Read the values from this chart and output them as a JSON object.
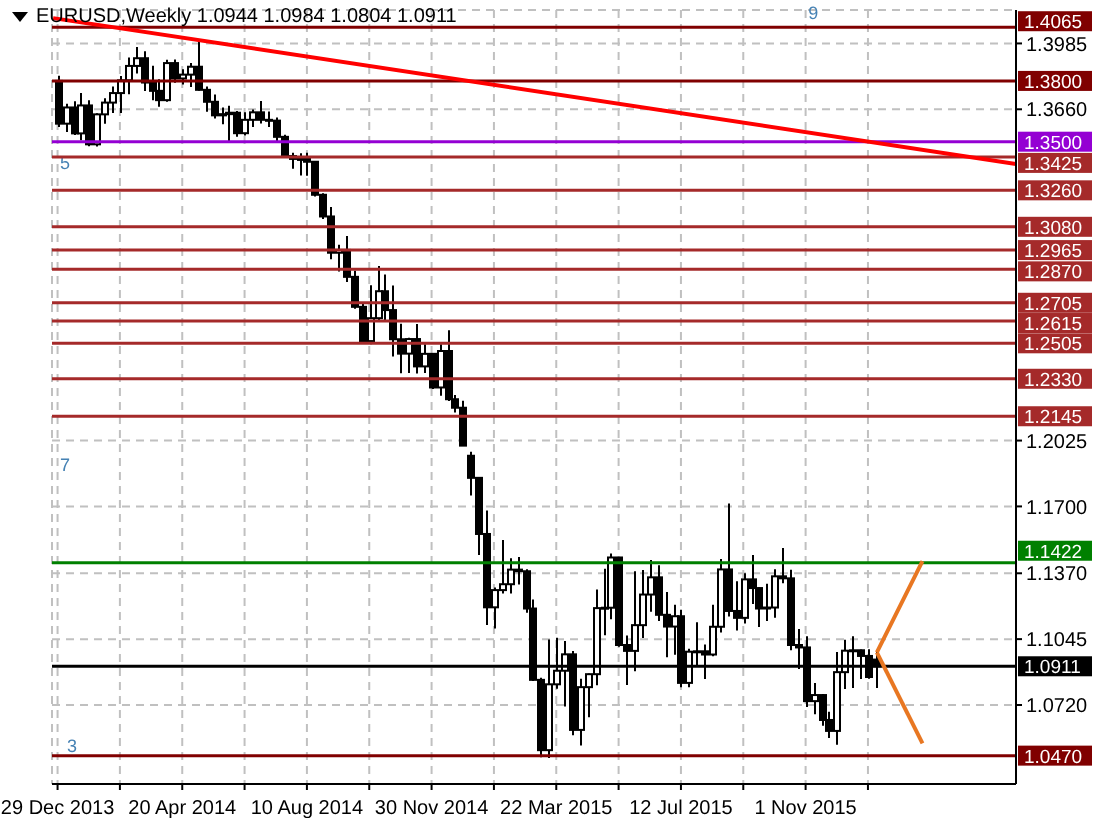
{
  "chart_data": {
    "type": "candlestick",
    "title": "EURUSD,Weekly  1.0944 1.0984 1.0804 1.0911",
    "color": "#000000",
    "x": [
      "2013-12-29",
      "2014-01-05",
      "2014-01-12",
      "2014-01-19",
      "2014-01-26",
      "2014-02-02",
      "2014-02-09",
      "2014-02-16",
      "2014-02-23",
      "2014-03-02",
      "2014-03-09",
      "2014-03-16",
      "2014-03-23",
      "2014-03-30",
      "2014-04-06",
      "2014-04-13",
      "2014-04-20",
      "2014-04-27",
      "2014-05-04",
      "2014-05-11",
      "2014-05-18",
      "2014-05-25",
      "2014-06-01",
      "2014-06-08",
      "2014-06-15",
      "2014-06-22",
      "2014-06-29",
      "2014-07-06",
      "2014-07-13",
      "2014-07-20",
      "2014-07-27",
      "2014-08-03",
      "2014-08-10",
      "2014-08-17",
      "2014-08-24",
      "2014-08-31",
      "2014-09-07",
      "2014-09-14",
      "2014-09-21",
      "2014-09-28",
      "2014-10-05",
      "2014-10-12",
      "2014-10-19",
      "2014-10-26",
      "2014-11-02",
      "2014-11-09",
      "2014-11-16",
      "2014-11-23",
      "2014-11-30",
      "2014-12-07",
      "2014-12-14",
      "2014-12-21",
      "2014-12-28",
      "2015-01-04",
      "2015-01-11",
      "2015-01-18",
      "2015-01-25",
      "2015-02-01",
      "2015-02-08",
      "2015-02-15",
      "2015-02-22",
      "2015-03-01",
      "2015-03-08",
      "2015-03-15",
      "2015-03-22",
      "2015-03-29",
      "2015-04-05",
      "2015-04-12",
      "2015-04-19",
      "2015-04-26",
      "2015-05-03",
      "2015-05-10",
      "2015-05-17",
      "2015-05-24",
      "2015-05-31",
      "2015-06-07",
      "2015-06-14",
      "2015-06-21",
      "2015-06-28",
      "2015-07-05",
      "2015-07-12",
      "2015-07-19",
      "2015-07-26",
      "2015-08-02",
      "2015-08-09",
      "2015-08-16",
      "2015-08-23",
      "2015-08-30",
      "2015-09-06",
      "2015-09-13",
      "2015-09-20",
      "2015-09-27",
      "2015-10-04",
      "2015-10-11",
      "2015-10-18",
      "2015-10-25",
      "2015-11-01",
      "2015-11-08",
      "2015-11-15",
      "2015-11-22",
      "2015-11-29",
      "2015-12-06",
      "2015-12-13",
      "2015-12-20",
      "2015-12-27",
      "2016-01-03"
    ],
    "ohlc": [
      [
        1.38,
        1.3826,
        1.3573,
        1.3589
      ],
      [
        1.3589,
        1.3687,
        1.3548,
        1.3669
      ],
      [
        1.3669,
        1.37,
        1.3533,
        1.3541
      ],
      [
        1.3541,
        1.374,
        1.3507,
        1.3679
      ],
      [
        1.3679,
        1.3705,
        1.3477,
        1.3487
      ],
      [
        1.3487,
        1.364,
        1.3476,
        1.3635
      ],
      [
        1.3635,
        1.3715,
        1.3588,
        1.3693
      ],
      [
        1.3693,
        1.3773,
        1.3642,
        1.374
      ],
      [
        1.374,
        1.3824,
        1.3642,
        1.3803
      ],
      [
        1.3803,
        1.3915,
        1.3734,
        1.3874
      ],
      [
        1.3874,
        1.3967,
        1.3836,
        1.3912
      ],
      [
        1.3912,
        1.3947,
        1.375,
        1.3792
      ],
      [
        1.3792,
        1.3875,
        1.3704,
        1.3751
      ],
      [
        1.3751,
        1.3808,
        1.3672,
        1.3705
      ],
      [
        1.3705,
        1.3905,
        1.3697,
        1.3888
      ],
      [
        1.3888,
        1.3906,
        1.3791,
        1.3812
      ],
      [
        1.3812,
        1.3858,
        1.3782,
        1.3831
      ],
      [
        1.3831,
        1.3888,
        1.377,
        1.387
      ],
      [
        1.387,
        1.3993,
        1.3751,
        1.3756
      ],
      [
        1.3756,
        1.3773,
        1.3648,
        1.3697
      ],
      [
        1.3697,
        1.3733,
        1.3614,
        1.363
      ],
      [
        1.363,
        1.3669,
        1.3586,
        1.3636
      ],
      [
        1.3636,
        1.3677,
        1.3503,
        1.3643
      ],
      [
        1.3643,
        1.3651,
        1.3524,
        1.3542
      ],
      [
        1.3542,
        1.3645,
        1.353,
        1.3608
      ],
      [
        1.3608,
        1.3659,
        1.3573,
        1.3645
      ],
      [
        1.3645,
        1.3701,
        1.359,
        1.3608
      ],
      [
        1.3608,
        1.3649,
        1.3573,
        1.3604
      ],
      [
        1.3604,
        1.3619,
        1.3502,
        1.3524
      ],
      [
        1.3524,
        1.3534,
        1.3421,
        1.3429
      ],
      [
        1.3429,
        1.3445,
        1.3367,
        1.3415
      ],
      [
        1.3415,
        1.3443,
        1.3333,
        1.3415
      ],
      [
        1.3415,
        1.3445,
        1.3332,
        1.3401
      ],
      [
        1.3401,
        1.3402,
        1.323,
        1.3238
      ],
      [
        1.3238,
        1.3245,
        1.3119,
        1.3131
      ],
      [
        1.3131,
        1.3178,
        1.292,
        1.2952
      ],
      [
        1.2952,
        1.2991,
        1.286,
        1.2966
      ],
      [
        1.2966,
        1.3034,
        1.2808,
        1.2833
      ],
      [
        1.2833,
        1.2863,
        1.2675,
        1.2685
      ],
      [
        1.2685,
        1.2707,
        1.2501,
        1.2516
      ],
      [
        1.2516,
        1.2791,
        1.25,
        1.2629
      ],
      [
        1.2629,
        1.2887,
        1.2613,
        1.2762
      ],
      [
        1.2762,
        1.2845,
        1.2613,
        1.2669
      ],
      [
        1.2669,
        1.279,
        1.244,
        1.2525
      ],
      [
        1.2525,
        1.2601,
        1.2357,
        1.2454
      ],
      [
        1.2454,
        1.2532,
        1.2358,
        1.2526
      ],
      [
        1.2526,
        1.26,
        1.2356,
        1.2391
      ],
      [
        1.2391,
        1.25,
        1.2358,
        1.2453
      ],
      [
        1.2453,
        1.2457,
        1.228,
        1.2287
      ],
      [
        1.2287,
        1.25,
        1.2246,
        1.2467
      ],
      [
        1.2467,
        1.257,
        1.222,
        1.2229
      ],
      [
        1.2229,
        1.225,
        1.2164,
        1.2187
      ],
      [
        1.2187,
        1.2222,
        1.2,
        1.2
      ],
      [
        1.195,
        1.197,
        1.1754,
        1.1841
      ],
      [
        1.1841,
        1.1843,
        1.146,
        1.1564
      ],
      [
        1.1564,
        1.168,
        1.1115,
        1.1202
      ],
      [
        1.1202,
        1.13,
        1.1098,
        1.1287
      ],
      [
        1.1287,
        1.1534,
        1.127,
        1.1316
      ],
      [
        1.1316,
        1.1444,
        1.127,
        1.1388
      ],
      [
        1.1388,
        1.145,
        1.1315,
        1.138
      ],
      [
        1.138,
        1.139,
        1.1175,
        1.1196
      ],
      [
        1.1196,
        1.124,
        1.0838,
        1.0844
      ],
      [
        1.0844,
        1.0855,
        1.0462,
        1.0497
      ],
      [
        1.0497,
        1.1043,
        1.0458,
        1.0822
      ],
      [
        1.0822,
        1.1052,
        1.08,
        1.0889
      ],
      [
        1.0889,
        1.1036,
        1.0712,
        1.097
      ],
      [
        1.097,
        1.0987,
        1.057,
        1.0597
      ],
      [
        1.0597,
        1.0849,
        1.052,
        1.0808
      ],
      [
        1.0808,
        1.0875,
        1.066,
        1.0872
      ],
      [
        1.0872,
        1.129,
        1.0817,
        1.1198
      ],
      [
        1.1198,
        1.1392,
        1.1064,
        1.12
      ],
      [
        1.12,
        1.1467,
        1.1143,
        1.1448
      ],
      [
        1.1448,
        1.145,
        1.1008,
        1.1016
      ],
      [
        1.1016,
        1.1063,
        1.0818,
        1.0987
      ],
      [
        1.0987,
        1.138,
        1.0887,
        1.1114
      ],
      [
        1.1114,
        1.1386,
        1.105,
        1.1265
      ],
      [
        1.1265,
        1.1436,
        1.118,
        1.135
      ],
      [
        1.135,
        1.141,
        1.1134,
        1.1165
      ],
      [
        1.1165,
        1.1278,
        1.0955,
        1.1107
      ],
      [
        1.1107,
        1.1215,
        1.0968,
        1.1158
      ],
      [
        1.1158,
        1.119,
        1.0808,
        1.0829
      ],
      [
        1.0829,
        1.0998,
        1.0808,
        1.0983
      ],
      [
        1.0983,
        1.1128,
        1.0915,
        1.0985
      ],
      [
        1.0985,
        1.1019,
        1.0848,
        1.0969
      ],
      [
        1.0969,
        1.1215,
        1.096,
        1.1106
      ],
      [
        1.1106,
        1.144,
        1.1078,
        1.1389
      ],
      [
        1.1389,
        1.1714,
        1.1157,
        1.1184
      ],
      [
        1.1184,
        1.1331,
        1.1087,
        1.115
      ],
      [
        1.115,
        1.137,
        1.1122,
        1.134
      ],
      [
        1.134,
        1.146,
        1.1218,
        1.1297
      ],
      [
        1.1297,
        1.1301,
        1.1105,
        1.1196
      ],
      [
        1.1196,
        1.1318,
        1.1135,
        1.1201
      ],
      [
        1.1201,
        1.139,
        1.115,
        1.1355
      ],
      [
        1.1355,
        1.1495,
        1.1321,
        1.1345
      ],
      [
        1.1345,
        1.1388,
        1.099,
        1.1016
      ],
      [
        1.1016,
        1.1095,
        1.0897,
        1.1004
      ],
      [
        1.1004,
        1.1059,
        1.071,
        1.0739
      ],
      [
        1.0739,
        1.0829,
        1.0674,
        1.0769
      ],
      [
        1.0769,
        1.0774,
        1.0617,
        1.0646
      ],
      [
        1.0646,
        1.0687,
        1.0557,
        1.0592
      ],
      [
        1.0592,
        1.0981,
        1.0524,
        1.0882
      ],
      [
        1.0882,
        1.1042,
        1.0799,
        1.0988
      ],
      [
        1.0988,
        1.1059,
        1.0804,
        1.099
      ],
      [
        1.099,
        1.0994,
        1.0848,
        1.0962
      ],
      [
        1.0962,
        1.0995,
        1.085,
        1.0858
      ],
      [
        1.0944,
        1.0984,
        1.0804,
        1.0911
      ]
    ],
    "series": [
      {
        "type": "line",
        "color": "#ff0000",
        "x": [
          "2013-12-25",
          "2016-05-08"
        ],
        "values": [
          1.411,
          1.339
        ]
      },
      {
        "type": "line",
        "color": "#e87722",
        "x": [
          "2016-01-04",
          "2016-02-14"
        ],
        "values": [
          1.098,
          1.143
        ]
      },
      {
        "type": "line",
        "color": "#e87722",
        "x": [
          "2016-01-04",
          "2016-02-14"
        ],
        "values": [
          1.098,
          1.053
        ]
      }
    ],
    "xlim": [
      "2013-12-24",
      "2016-05-08"
    ],
    "xticks": [
      {
        "value": "2013-12-29",
        "label": "29 Dec 2013"
      },
      {
        "value": "2014-02-23",
        "label": null
      },
      {
        "value": "2014-04-20",
        "label": "20 Apr 2014"
      },
      {
        "value": "2014-06-15",
        "label": null
      },
      {
        "value": "2014-08-10",
        "label": "10 Aug 2014"
      },
      {
        "value": "2014-10-05",
        "label": null
      },
      {
        "value": "2014-11-30",
        "label": "30 Nov 2014"
      },
      {
        "value": "2015-01-25",
        "label": null
      },
      {
        "value": "2015-03-22",
        "label": "22 Mar 2015"
      },
      {
        "value": "2015-05-17",
        "label": null
      },
      {
        "value": "2015-07-12",
        "label": "12 Jul 2015"
      },
      {
        "value": "2015-09-06",
        "label": null
      },
      {
        "value": "2015-11-01",
        "label": "1 Nov 2015"
      },
      {
        "value": "2015-12-27",
        "label": null
      }
    ],
    "ylim": [
      1.033,
      1.415
    ],
    "yticks": [
      1.3985,
      {
        "value": 1.366,
        "label": "1.3660"
      },
      1.2025,
      {
        "value": 1.17,
        "label": "1.1700"
      },
      {
        "value": 1.137,
        "label": "1.1370"
      },
      1.1045,
      {
        "value": 1.072,
        "label": "1.0720"
      }
    ],
    "grid": true,
    "ref_lines": [
      {
        "axis": "y",
        "value": 1.4065,
        "label": "1.4065",
        "color": "#800000"
      },
      {
        "axis": "y",
        "value": 1.38,
        "label": "1.3800",
        "color": "#800000"
      },
      {
        "axis": "y",
        "value": 1.35,
        "label": "1.3500",
        "color": "#9400d3"
      },
      {
        "axis": "y",
        "value": 1.3425,
        "label": "1.3425",
        "color": "#a52a2a"
      },
      {
        "axis": "y",
        "value": 1.326,
        "label": "1.3260",
        "color": "#a52a2a"
      },
      {
        "axis": "y",
        "value": 1.308,
        "label": "1.3080",
        "color": "#a52a2a"
      },
      {
        "axis": "y",
        "value": 1.2965,
        "label": "1.2965",
        "color": "#a52a2a"
      },
      {
        "axis": "y",
        "value": 1.287,
        "label": "1.2870",
        "color": "#a52a2a"
      },
      {
        "axis": "y",
        "value": 1.2705,
        "label": "1.2705",
        "color": "#a52a2a"
      },
      {
        "axis": "y",
        "value": 1.2615,
        "label": "1.2615",
        "color": "#a52a2a"
      },
      {
        "axis": "y",
        "value": 1.2505,
        "label": "1.2505",
        "color": "#a52a2a"
      },
      {
        "axis": "y",
        "value": 1.233,
        "label": "1.2330",
        "color": "#a52a2a"
      },
      {
        "axis": "y",
        "value": 1.2145,
        "label": "1.2145",
        "color": "#a52a2a"
      },
      {
        "axis": "y",
        "value": 1.1422,
        "label": "1.1422",
        "color": "#008000"
      },
      {
        "axis": "y",
        "value": 1.0911,
        "label": "1.0911",
        "color": "#000000"
      },
      {
        "axis": "y",
        "value": 1.047,
        "label": "1.0470",
        "color": "#800000"
      }
    ],
    "annotations": [
      "5",
      "7",
      {
        "text": "3",
        "x": "2014-01-01",
        "y": 1.047
      },
      {
        "text": "9",
        "x": "2015-10-29",
        "y": 1.4088
      }
    ]
  }
}
